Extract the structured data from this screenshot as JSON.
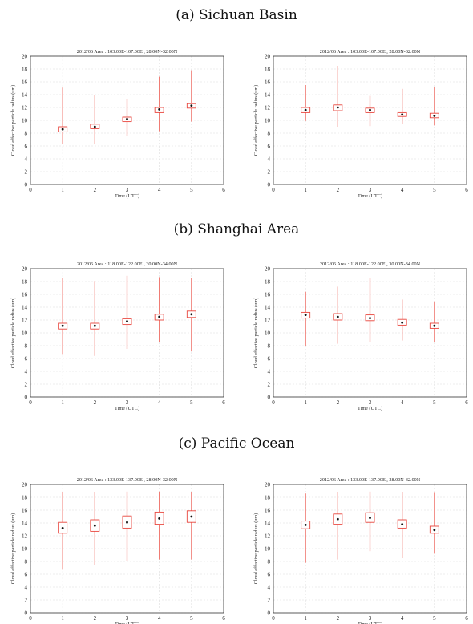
{
  "sections": [
    {
      "label": "(a) Sichuan Basin"
    },
    {
      "label": "(b) Shanghai Area"
    },
    {
      "label": "(c) Pacific Ocean"
    }
  ],
  "colors": {
    "box": "#e8453c",
    "whisker": "#f07a72",
    "median": "#111111",
    "grid": "#dddddd",
    "axis": "#333333"
  },
  "chart_data": [
    {
      "type": "box",
      "title": "2012/06    Area : 103.00E-107.00E , 28.00N-32.00N",
      "xlabel": "Time (UTC)",
      "ylabel": "Cloud effective particle radius (um)",
      "xlim": [
        0,
        6
      ],
      "ylim": [
        0,
        20
      ],
      "xticks": [
        0,
        1,
        2,
        3,
        4,
        5,
        6
      ],
      "yticks": [
        0,
        2,
        4,
        6,
        8,
        10,
        12,
        14,
        16,
        18,
        20
      ],
      "boxes": [
        {
          "x": 1,
          "min": 6.3,
          "q1": 8.2,
          "median": 8.6,
          "q3": 9.0,
          "max": 15.1
        },
        {
          "x": 2,
          "min": 6.3,
          "q1": 8.7,
          "median": 9.0,
          "q3": 9.4,
          "max": 14.0
        },
        {
          "x": 3,
          "min": 7.5,
          "q1": 9.8,
          "median": 10.2,
          "q3": 10.5,
          "max": 13.3
        },
        {
          "x": 4,
          "min": 8.3,
          "q1": 11.2,
          "median": 11.7,
          "q3": 12.0,
          "max": 16.8
        },
        {
          "x": 5,
          "min": 9.8,
          "q1": 11.9,
          "median": 12.3,
          "q3": 12.6,
          "max": 17.8
        }
      ]
    },
    {
      "type": "box",
      "title": "2012/06    Area : 103.00E-107.00E , 28.00N-32.00N",
      "xlabel": "Time (UTC)",
      "ylabel": "Cloud effective particle radius (um)",
      "xlim": [
        0,
        6
      ],
      "ylim": [
        0,
        20
      ],
      "xticks": [
        0,
        1,
        2,
        3,
        4,
        5,
        6
      ],
      "yticks": [
        0,
        2,
        4,
        6,
        8,
        10,
        12,
        14,
        16,
        18,
        20
      ],
      "boxes": [
        {
          "x": 1,
          "min": 9.9,
          "q1": 11.2,
          "median": 11.6,
          "q3": 12.0,
          "max": 15.5
        },
        {
          "x": 2,
          "min": 9.0,
          "q1": 11.5,
          "median": 12.0,
          "q3": 12.4,
          "max": 18.5
        },
        {
          "x": 3,
          "min": 9.1,
          "q1": 11.2,
          "median": 11.6,
          "q3": 11.9,
          "max": 13.8
        },
        {
          "x": 4,
          "min": 9.5,
          "q1": 10.6,
          "median": 10.9,
          "q3": 11.2,
          "max": 14.9
        },
        {
          "x": 5,
          "min": 9.2,
          "q1": 10.4,
          "median": 10.7,
          "q3": 11.1,
          "max": 15.2
        }
      ]
    },
    {
      "type": "box",
      "title": "2012/06    Area : 118.00E-122.00E , 30.00N-34.00N",
      "xlabel": "Time (UTC)",
      "ylabel": "Cloud effective particle radius (um)",
      "xlim": [
        0,
        6
      ],
      "ylim": [
        0,
        20
      ],
      "xticks": [
        0,
        1,
        2,
        3,
        4,
        5,
        6
      ],
      "yticks": [
        0,
        2,
        4,
        6,
        8,
        10,
        12,
        14,
        16,
        18,
        20
      ],
      "boxes": [
        {
          "x": 1,
          "min": 6.7,
          "q1": 10.6,
          "median": 11.1,
          "q3": 11.5,
          "max": 18.5
        },
        {
          "x": 2,
          "min": 6.4,
          "q1": 10.6,
          "median": 11.1,
          "q3": 11.5,
          "max": 18.1
        },
        {
          "x": 3,
          "min": 7.5,
          "q1": 11.3,
          "median": 11.8,
          "q3": 12.2,
          "max": 18.9
        },
        {
          "x": 4,
          "min": 8.6,
          "q1": 12.0,
          "median": 12.5,
          "q3": 12.9,
          "max": 18.7
        },
        {
          "x": 5,
          "min": 7.1,
          "q1": 12.4,
          "median": 12.9,
          "q3": 13.4,
          "max": 18.6
        }
      ]
    },
    {
      "type": "box",
      "title": "2012/06    Area : 118.00E-122.00E , 30.00N-34.00N",
      "xlabel": "Time (UTC)",
      "ylabel": "Cloud effective particle radius (um)",
      "xlim": [
        0,
        6
      ],
      "ylim": [
        0,
        20
      ],
      "xticks": [
        0,
        1,
        2,
        3,
        4,
        5,
        6
      ],
      "yticks": [
        0,
        2,
        4,
        6,
        8,
        10,
        12,
        14,
        16,
        18,
        20
      ],
      "boxes": [
        {
          "x": 1,
          "min": 8.0,
          "q1": 12.3,
          "median": 12.8,
          "q3": 13.2,
          "max": 16.4
        },
        {
          "x": 2,
          "min": 8.3,
          "q1": 12.0,
          "median": 12.5,
          "q3": 13.0,
          "max": 17.2
        },
        {
          "x": 3,
          "min": 8.6,
          "q1": 11.9,
          "median": 12.3,
          "q3": 12.8,
          "max": 18.6
        },
        {
          "x": 4,
          "min": 8.8,
          "q1": 11.2,
          "median": 11.6,
          "q3": 12.1,
          "max": 15.2
        },
        {
          "x": 5,
          "min": 8.6,
          "q1": 10.7,
          "median": 11.1,
          "q3": 11.5,
          "max": 14.9
        }
      ]
    },
    {
      "type": "box",
      "title": "2012/06    Area : 133.00E-137.00E , 28.00N-32.00N",
      "xlabel": "Time (UTC)",
      "ylabel": "Cloud effective particle radius (um)",
      "xlim": [
        0,
        6
      ],
      "ylim": [
        0,
        20
      ],
      "xticks": [
        0,
        1,
        2,
        3,
        4,
        5,
        6
      ],
      "yticks": [
        0,
        2,
        4,
        6,
        8,
        10,
        12,
        14,
        16,
        18,
        20
      ],
      "boxes": [
        {
          "x": 1,
          "min": 6.7,
          "q1": 12.4,
          "median": 13.2,
          "q3": 14.1,
          "max": 18.8
        },
        {
          "x": 2,
          "min": 7.4,
          "q1": 12.7,
          "median": 13.6,
          "q3": 14.5,
          "max": 18.8
        },
        {
          "x": 3,
          "min": 8.0,
          "q1": 13.2,
          "median": 14.1,
          "q3": 15.1,
          "max": 18.9
        },
        {
          "x": 4,
          "min": 8.3,
          "q1": 13.8,
          "median": 14.7,
          "q3": 15.7,
          "max": 18.9
        },
        {
          "x": 5,
          "min": 8.3,
          "q1": 14.1,
          "median": 15.0,
          "q3": 15.9,
          "max": 18.8
        }
      ]
    },
    {
      "type": "box",
      "title": "2012/06    Area : 133.00E-137.00E , 28.00N-32.00N",
      "xlabel": "Time (UTC)",
      "ylabel": "Cloud effective particle radius (um)",
      "xlim": [
        0,
        6
      ],
      "ylim": [
        0,
        20
      ],
      "xticks": [
        0,
        1,
        2,
        3,
        4,
        5,
        6
      ],
      "yticks": [
        0,
        2,
        4,
        6,
        8,
        10,
        12,
        14,
        16,
        18,
        20
      ],
      "boxes": [
        {
          "x": 1,
          "min": 7.8,
          "q1": 13.1,
          "median": 13.7,
          "q3": 14.3,
          "max": 18.6
        },
        {
          "x": 2,
          "min": 8.3,
          "q1": 13.8,
          "median": 14.6,
          "q3": 15.4,
          "max": 18.8
        },
        {
          "x": 3,
          "min": 9.6,
          "q1": 14.1,
          "median": 14.8,
          "q3": 15.6,
          "max": 18.9
        },
        {
          "x": 4,
          "min": 8.5,
          "q1": 13.2,
          "median": 13.8,
          "q3": 14.5,
          "max": 18.8
        },
        {
          "x": 5,
          "min": 9.2,
          "q1": 12.4,
          "median": 12.9,
          "q3": 13.5,
          "max": 18.7
        }
      ]
    }
  ]
}
